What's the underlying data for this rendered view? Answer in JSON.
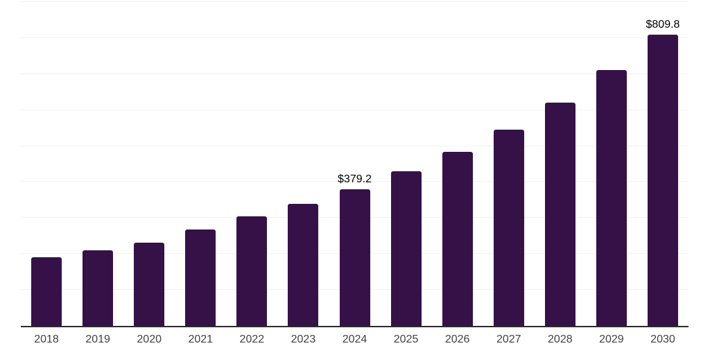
{
  "chart_data": {
    "type": "bar",
    "title": "",
    "xlabel": "",
    "ylabel": "",
    "categories": [
      "2018",
      "2019",
      "2020",
      "2021",
      "2022",
      "2023",
      "2024",
      "2025",
      "2026",
      "2027",
      "2028",
      "2029",
      "2030"
    ],
    "values": [
      190,
      211,
      232,
      268,
      304,
      340,
      379.2,
      429,
      483,
      546,
      621,
      711,
      809.8
    ],
    "value_labels": {
      "2024": "$379.2",
      "2030": "$809.8"
    },
    "ylim": [
      0,
      900
    ],
    "gridline_step": 100,
    "grid": "horizontal",
    "y_tick_labels_visible": false,
    "legend": "none"
  },
  "colors": {
    "background": "#ffffff",
    "bar": "#351148",
    "gridline": "#f2f2f4",
    "axis": "#2b2b2b",
    "tick_label": "#414141",
    "value_label": "#000000"
  }
}
